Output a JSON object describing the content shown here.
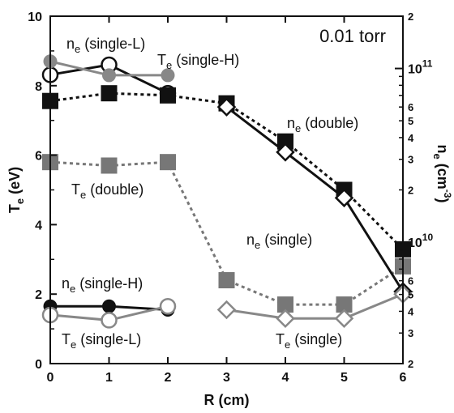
{
  "chart_data": {
    "type": "line",
    "annotation": "0.01 torr",
    "xlabel": "R (cm)",
    "ylabel_left": "T_e (eV)",
    "ylabel_right": "n_e (cm^-3)",
    "xlim": [
      0,
      6
    ],
    "ylim_left": [
      0,
      10
    ],
    "ylim_right_log": [
      2000000000.0,
      200000000000.0
    ],
    "x_ticks": [
      0,
      1,
      2,
      3,
      4,
      5,
      6
    ],
    "y_left_ticks": [
      0,
      2,
      4,
      6,
      8,
      10
    ],
    "y_right_major_ticks": [
      {
        "value": 10000000000.0,
        "label": "10",
        "exp": "10"
      },
      {
        "value": 100000000000.0,
        "label": "10",
        "exp": "11"
      }
    ],
    "y_right_minor_ticks": [
      {
        "value": 2000000000.0,
        "label": "2"
      },
      {
        "value": 3000000000.0,
        "label": "3"
      },
      {
        "value": 4000000000.0,
        "label": "4"
      },
      {
        "value": 5000000000.0,
        "label": "5"
      },
      {
        "value": 6000000000.0,
        "label": "6"
      },
      {
        "value": 20000000000.0,
        "label": "2"
      },
      {
        "value": 30000000000.0,
        "label": "3"
      },
      {
        "value": 40000000000.0,
        "label": "4"
      },
      {
        "value": 50000000000.0,
        "label": "5"
      },
      {
        "value": 60000000000.0,
        "label": "6"
      },
      {
        "value": 7000000000.0,
        "label": ""
      },
      {
        "value": 8000000000.0,
        "label": ""
      },
      {
        "value": 9000000000.0,
        "label": ""
      },
      {
        "value": 70000000000.0,
        "label": ""
      },
      {
        "value": 80000000000.0,
        "label": ""
      },
      {
        "value": 90000000000.0,
        "label": ""
      },
      {
        "value": 200000000000.0,
        "label": "2"
      }
    ],
    "series": [
      {
        "key": "ne_single_L",
        "axis": "right",
        "x": [
          0,
          1,
          2
        ],
        "y": [
          92000000000.0,
          105000000000.0,
          72000000000.0
        ],
        "color": "#111111",
        "marker": "circle-open",
        "line": "solid"
      },
      {
        "key": "te_single_H",
        "axis": "left",
        "x": [
          0,
          1,
          2
        ],
        "y": [
          8.7,
          8.3,
          8.3
        ],
        "color": "#888888",
        "marker": "circle-filled",
        "line": "solid"
      },
      {
        "key": "ne_double",
        "axis": "right",
        "x": [
          0,
          1,
          2,
          3,
          4,
          5,
          6
        ],
        "y": [
          65000000000.0,
          72000000000.0,
          70000000000.0,
          63000000000.0,
          38000000000.0,
          20000000000.0,
          9100000000.0
        ],
        "color": "#111111",
        "marker": "square-filled",
        "line": "dotted"
      },
      {
        "key": "te_double",
        "axis": "left",
        "x": [
          0,
          1,
          2,
          3,
          4,
          5,
          6
        ],
        "y": [
          5.8,
          5.7,
          5.8,
          2.4,
          1.7,
          1.7,
          2.8
        ],
        "color": "#777777",
        "marker": "square-filled",
        "line": "dotted"
      },
      {
        "key": "ne_single",
        "axis": "right",
        "x": [
          3,
          4,
          5,
          6
        ],
        "y": [
          60000000000.0,
          33000000000.0,
          18000000000.0,
          5200000000.0
        ],
        "color": "#111111",
        "marker": "diamond-open",
        "line": "solid"
      },
      {
        "key": "ne_single_H",
        "axis": "left",
        "x": [
          0,
          1,
          2
        ],
        "y": [
          1.65,
          1.65,
          1.55
        ],
        "color": "#111111",
        "marker": "circle-filled",
        "line": "solid"
      },
      {
        "key": "te_single_L",
        "axis": "left",
        "x": [
          0,
          1,
          2
        ],
        "y": [
          1.4,
          1.25,
          1.65
        ],
        "color": "#888888",
        "marker": "circle-open",
        "line": "solid"
      },
      {
        "key": "te_single",
        "axis": "left",
        "x": [
          3,
          4,
          5,
          6
        ],
        "y": [
          1.55,
          1.3,
          1.3,
          2.0
        ],
        "color": "#888888",
        "marker": "diamond-open",
        "line": "solid"
      }
    ],
    "labels": [
      {
        "key": "ne_single_L",
        "base": "n",
        "sub": "e",
        "rest": "  (single-L)"
      },
      {
        "key": "te_single_H",
        "base": "T",
        "sub": "e",
        "rest": "  (single-H)"
      },
      {
        "key": "ne_double",
        "base": "n",
        "sub": "e",
        "rest": "  (double)"
      },
      {
        "key": "te_double",
        "base": "T",
        "sub": "e",
        "rest": "  (double)"
      },
      {
        "key": "ne_single",
        "base": "n",
        "sub": "e",
        "rest": "  (single)"
      },
      {
        "key": "ne_single_H",
        "base": "n",
        "sub": "e",
        "rest": "  (single-H)"
      },
      {
        "key": "te_single_L",
        "base": "T",
        "sub": "e",
        "rest": "  (single-L)"
      },
      {
        "key": "te_single",
        "base": "T",
        "sub": "e",
        "rest": "  (single)"
      }
    ]
  }
}
